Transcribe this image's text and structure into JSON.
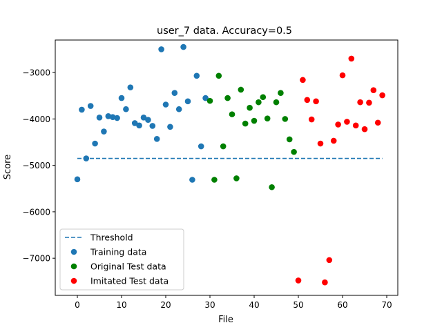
{
  "chart_data": {
    "type": "scatter",
    "title": "user_7 data. Accuracy=0.5",
    "xlabel": "File",
    "ylabel": "Score",
    "xlim": [
      -5,
      72.5
    ],
    "ylim": [
      -7800,
      -2300
    ],
    "xticks": [
      0,
      10,
      20,
      30,
      40,
      50,
      60,
      70
    ],
    "yticks": [
      -7000,
      -6000,
      -5000,
      -4000,
      -3000
    ],
    "xtick_labels": [
      "0",
      "10",
      "20",
      "30",
      "40",
      "50",
      "60",
      "70"
    ],
    "ytick_labels": [
      "−7000",
      "−6000",
      "−5000",
      "−4000",
      "−3000"
    ],
    "legend_position": "lower-left",
    "threshold": {
      "name": "Threshold",
      "y": -4850,
      "x": [
        0,
        69
      ],
      "color": "#1f77b4",
      "style": "dashed"
    },
    "series": [
      {
        "name": "Training data",
        "color": "#1f77b4",
        "x": [
          0,
          1,
          2,
          3,
          4,
          5,
          6,
          7,
          8,
          9,
          10,
          11,
          12,
          13,
          14,
          15,
          16,
          17,
          18,
          19,
          20,
          21,
          22,
          23,
          24,
          25,
          26,
          27,
          28,
          29
        ],
        "y": [
          -5300,
          -3800,
          -4850,
          -3720,
          -4530,
          -3970,
          -4270,
          -3940,
          -3960,
          -3980,
          -3550,
          -3790,
          -3320,
          -4090,
          -4140,
          -3970,
          -4020,
          -4150,
          -4430,
          -2500,
          -3690,
          -4170,
          -3440,
          -3790,
          -2450,
          -3620,
          -5310,
          -3070,
          -4590,
          -3550
        ]
      },
      {
        "name": "Original Test data",
        "color": "#008000",
        "x": [
          30,
          31,
          32,
          33,
          34,
          35,
          36,
          37,
          38,
          39,
          40,
          41,
          42,
          43,
          44,
          45,
          46,
          47,
          48,
          49
        ],
        "y": [
          -3610,
          -5310,
          -3070,
          -4590,
          -3550,
          -3900,
          -5280,
          -3370,
          -4100,
          -3760,
          -4040,
          -3640,
          -3530,
          -3990,
          -5470,
          -3640,
          -3440,
          -4000,
          -4440,
          -4710
        ]
      },
      {
        "name": "Imitated Test data",
        "color": "#ff0000",
        "x": [
          50,
          51,
          52,
          53,
          54,
          55,
          56,
          57,
          58,
          59,
          60,
          61,
          62,
          63,
          64,
          65,
          66,
          67,
          68,
          69
        ],
        "y": [
          -7480,
          -3160,
          -3590,
          -4010,
          -3620,
          -4530,
          -7520,
          -7040,
          -4470,
          -4120,
          -3060,
          -4060,
          -2700,
          -4140,
          -3640,
          -4220,
          -3650,
          -3380,
          -4080,
          -3490
        ]
      }
    ]
  }
}
